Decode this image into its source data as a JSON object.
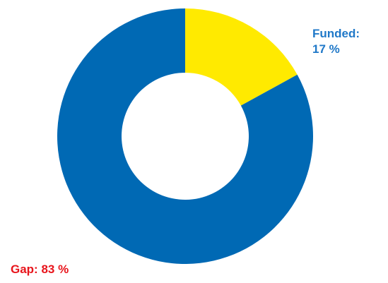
{
  "chart_data": {
    "type": "pie",
    "variant": "donut",
    "title": "",
    "slices": [
      {
        "name": "Funded",
        "value": 17,
        "label_prefix": "Funded:",
        "label_value": "17 %",
        "color": "#ffea00",
        "label_color": "#1f78c8"
      },
      {
        "name": "Gap",
        "value": 83,
        "label_prefix": "Gap:",
        "label_value": "83 %",
        "color": "#0069b4",
        "label_color": "#e8141b"
      }
    ]
  }
}
